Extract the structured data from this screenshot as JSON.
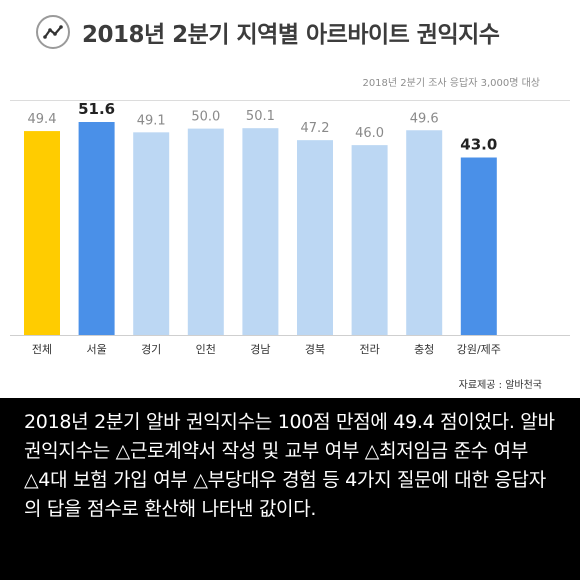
{
  "header": {
    "title": "2018년 2분기 지역별 아르바이트 권익지수",
    "note": "2018년 2분기 조사 응답자 3,000명 대상"
  },
  "source": "자료제공 : 알바천국",
  "caption": "2018년 2분기 알바 권익지수는 100점 만점에 49.4 점이었다. 알바 권익지수는 △근로계약서 작성 및 교부 여부 △최저임금 준수 여부 △4대 보험 가입 여부 △부당대우 경험 등 4가지 질문에 대한 응답자의 답을 점수로 환산해 나타낸 값이다.",
  "chart_data": {
    "type": "bar",
    "title": "2018년 2분기 지역별 아르바이트 권익지수",
    "categories": [
      "전체",
      "서울",
      "경기",
      "인천",
      "경남",
      "경북",
      "전라",
      "충청",
      "강원/제주"
    ],
    "values": [
      49.4,
      51.6,
      49.1,
      50.0,
      50.1,
      47.2,
      46.0,
      49.6,
      43.0
    ],
    "value_labels": [
      "49.4",
      "51.6",
      "49.1",
      "50.0",
      "50.1",
      "47.2",
      "46.0",
      "49.6",
      "43.0"
    ],
    "emphasized": [
      false,
      true,
      false,
      false,
      false,
      false,
      false,
      false,
      true
    ],
    "colors": {
      "overall": "#ffcc00",
      "highlight": "#4a90e8",
      "regular": "#bcd7f3",
      "baseline": "#cfcfcf"
    },
    "ylim": [
      0,
      51.6
    ],
    "grid": false,
    "legend": "none"
  }
}
